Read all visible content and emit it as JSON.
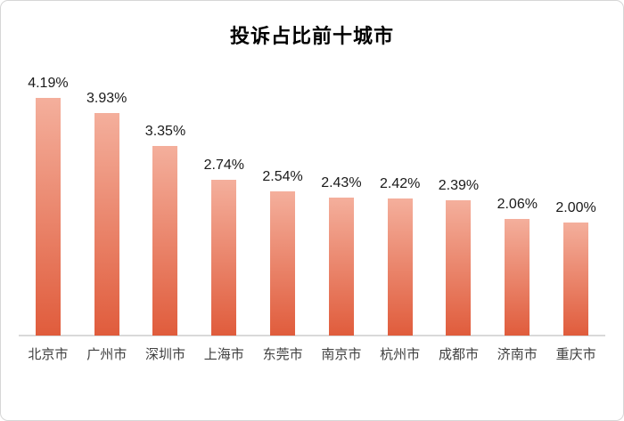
{
  "chart": {
    "colors": {
      "bar_gradient_top": "#F4AF9C",
      "bar_gradient_bottom": "#E05C3C",
      "axis_line": "#D9D9D9",
      "title_text": "#000000",
      "value_label_text": "#1A1A1A",
      "category_label_text": "#404040",
      "background": "#FFFFFF",
      "card_border": "#D6D6D6"
    }
  },
  "chart_data": {
    "type": "bar",
    "title": "投诉占比前十城市",
    "categories": [
      "北京市",
      "广州市",
      "深圳市",
      "上海市",
      "东莞市",
      "南京市",
      "杭州市",
      "成都市",
      "济南市",
      "重庆市"
    ],
    "values": [
      4.19,
      3.93,
      3.35,
      2.74,
      2.54,
      2.43,
      2.42,
      2.39,
      2.06,
      2.0
    ],
    "value_labels": [
      "4.19%",
      "3.93%",
      "3.35%",
      "2.74%",
      "2.54%",
      "2.43%",
      "2.42%",
      "2.39%",
      "2.06%",
      "2.00%"
    ],
    "xlabel": "",
    "ylabel": "",
    "ylim": [
      0,
      4.5
    ],
    "grid": false,
    "legend": false,
    "data_labels_position": "above-bars",
    "bar_gradient": [
      "#F4AF9C",
      "#E05C3C"
    ]
  }
}
